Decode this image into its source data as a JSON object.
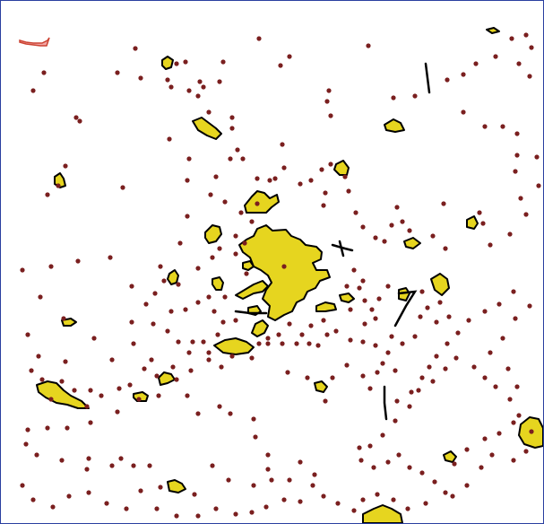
{
  "map": {
    "background_color": "#ffffff",
    "frame_border_color": "#2a3fa0",
    "polygon_fill_color": "#e6d51f",
    "polygon_stroke_color": "#000000",
    "point_color": "#7a1f1f",
    "highlight_feature_color": "#f2a6a6",
    "layers": [
      "urban-area-polygons",
      "road-segments",
      "point-features"
    ]
  }
}
